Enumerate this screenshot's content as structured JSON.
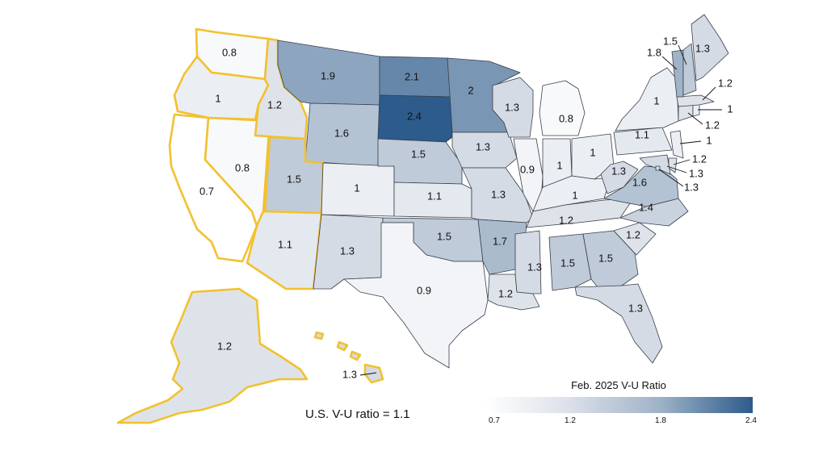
{
  "map": {
    "summary_text": "U.S. V-U ratio = 1.1",
    "legend": {
      "title": "Feb. 2025 V-U Ratio",
      "ticks": [
        "0.7",
        "1.2",
        "1.8",
        "2.4"
      ],
      "min": 0.7,
      "max": 2.4,
      "low_color": "#ffffff",
      "high_color": "#2c5b8c"
    },
    "highlight_color": "#f2c12e",
    "states": [
      {
        "code": "WA",
        "value": 0.8,
        "label": "0.8"
      },
      {
        "code": "OR",
        "value": 1.0,
        "label": "1"
      },
      {
        "code": "CA",
        "value": 0.7,
        "label": "0.7"
      },
      {
        "code": "NV",
        "value": 0.8,
        "label": "0.8"
      },
      {
        "code": "ID",
        "value": 1.2,
        "label": "1.2"
      },
      {
        "code": "MT",
        "value": 1.9,
        "label": "1.9"
      },
      {
        "code": "WY",
        "value": 1.6,
        "label": "1.6"
      },
      {
        "code": "UT",
        "value": 1.5,
        "label": "1.5"
      },
      {
        "code": "AZ",
        "value": 1.1,
        "label": "1.1"
      },
      {
        "code": "CO",
        "value": 1.0,
        "label": "1"
      },
      {
        "code": "NM",
        "value": 1.3,
        "label": "1.3"
      },
      {
        "code": "ND",
        "value": 2.1,
        "label": "2.1"
      },
      {
        "code": "SD",
        "value": 2.4,
        "label": "2.4"
      },
      {
        "code": "NE",
        "value": 1.5,
        "label": "1.5"
      },
      {
        "code": "KS",
        "value": 1.1,
        "label": "1.1"
      },
      {
        "code": "OK",
        "value": 1.5,
        "label": "1.5"
      },
      {
        "code": "TX",
        "value": 0.9,
        "label": "0.9"
      },
      {
        "code": "MN",
        "value": 2.0,
        "label": "2"
      },
      {
        "code": "IA",
        "value": 1.3,
        "label": "1.3"
      },
      {
        "code": "MO",
        "value": 1.3,
        "label": "1.3"
      },
      {
        "code": "AR",
        "value": 1.7,
        "label": "1.7"
      },
      {
        "code": "LA",
        "value": 1.2,
        "label": "1.2"
      },
      {
        "code": "WI",
        "value": 1.3,
        "label": "1.3"
      },
      {
        "code": "IL",
        "value": 0.9,
        "label": "0.9"
      },
      {
        "code": "MI",
        "value": 0.8,
        "label": "0.8"
      },
      {
        "code": "IN",
        "value": 1.0,
        "label": "1"
      },
      {
        "code": "OH",
        "value": 1.0,
        "label": "1"
      },
      {
        "code": "KY",
        "value": 1.0,
        "label": "1"
      },
      {
        "code": "TN",
        "value": 1.2,
        "label": "1.2"
      },
      {
        "code": "MS",
        "value": 1.3,
        "label": "1.3"
      },
      {
        "code": "AL",
        "value": 1.5,
        "label": "1.5"
      },
      {
        "code": "GA",
        "value": 1.5,
        "label": "1.5"
      },
      {
        "code": "FL",
        "value": 1.3,
        "label": "1.3"
      },
      {
        "code": "SC",
        "value": 1.2,
        "label": "1.2"
      },
      {
        "code": "NC",
        "value": 1.4,
        "label": "1.4"
      },
      {
        "code": "VA",
        "value": 1.6,
        "label": "1.6"
      },
      {
        "code": "WV",
        "value": 1.3,
        "label": "1.3"
      },
      {
        "code": "PA",
        "value": 1.1,
        "label": "1.1"
      },
      {
        "code": "NY",
        "value": 1.0,
        "label": "1"
      },
      {
        "code": "NJ",
        "value": 1.0,
        "label": "1"
      },
      {
        "code": "DE",
        "value": 1.2,
        "label": "1.2"
      },
      {
        "code": "MD",
        "value": 1.3,
        "label": "1.3"
      },
      {
        "code": "DC",
        "value": 1.3,
        "label": "1.3"
      },
      {
        "code": "CT",
        "value": 1.2,
        "label": "1.2"
      },
      {
        "code": "RI",
        "value": 1.0,
        "label": "1"
      },
      {
        "code": "MA",
        "value": 1.2,
        "label": "1.2"
      },
      {
        "code": "VT",
        "value": 1.8,
        "label": "1.8"
      },
      {
        "code": "NH",
        "value": 1.5,
        "label": "1.5"
      },
      {
        "code": "ME",
        "value": 1.3,
        "label": "1.3"
      },
      {
        "code": "AK",
        "value": 1.2,
        "label": "1.2"
      },
      {
        "code": "HI",
        "value": 1.3,
        "label": "1.3"
      }
    ]
  }
}
